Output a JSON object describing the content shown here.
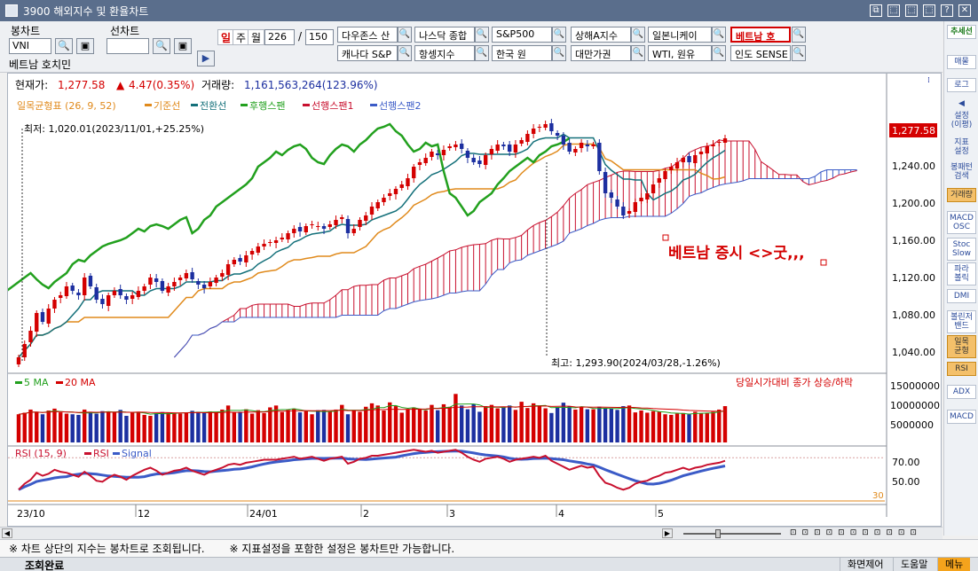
{
  "window": {
    "title": "3900 해외지수 및 환율차트",
    "buttons": [
      "⧉",
      "⬚",
      "⬚",
      "⬚",
      "?",
      "✕"
    ]
  },
  "toolbar": {
    "candle_label": "봉차트",
    "candle_symbol": "VNI",
    "candle_symbol_name": "베트남 호치민",
    "futures_label": "선차트",
    "futures_symbol": "",
    "periods": [
      "일",
      "주",
      "월"
    ],
    "active_period": "일",
    "count_value": "226",
    "count_sep": "/",
    "count_total": "150",
    "index_buttons_row1": [
      "다우존스 산",
      "나스닥 종합",
      "S&P500",
      "상해A지수",
      "일본니케이",
      "베트남 호"
    ],
    "index_buttons_row2": [
      "캐나다 S&P",
      "항셍지수",
      "한국 원",
      "대만가권",
      "WTI, 원유",
      "인도 SENSE"
    ],
    "search_glyph": "🔍",
    "save_glyph": "▣",
    "arrow_glyph": "▶"
  },
  "info": {
    "price_label": "현재가:",
    "price": "1,277.58",
    "change_arrow": "▲",
    "change": "4.47(0.35%)",
    "volume_label": "거래량:",
    "volume": "1,161,563,264(123.96%)"
  },
  "legend": {
    "ichimoku": "일목균형표 (26, 9, 52)",
    "base_line": "기준선",
    "conversion_line": "전환선",
    "lagging_span": "후행스팬",
    "leading_span1": "선행스팬1",
    "leading_span2": "선행스팬2"
  },
  "colors": {
    "up": "#d40000",
    "down": "#1c2fa0",
    "base": "#e08a1c",
    "conversion": "#14707a",
    "lagging": "#22a01e",
    "span1": "#c8102e",
    "span2": "#3b5bc7"
  },
  "annotations": {
    "low": "최저: 1,020.01(2023/11/01,+25.25%)",
    "high": "최고: 1,293.90(2024/03/28,-1.26%)",
    "note": "베트남 증시 <>굿,,,",
    "price_tag": "1,277.58",
    "vol_note": "당일시가대비 종가 상승/하락"
  },
  "price_axis": [
    "1,240.00",
    "1,200.00",
    "1,160.00",
    "1,120.00",
    "1,080.00",
    "1,040.00"
  ],
  "volume_legend": {
    "ma5": "5 MA",
    "ma20": "20 MA"
  },
  "volume_axis": [
    "15000000",
    "10000000",
    "5000000"
  ],
  "rsi": {
    "legend_main": "RSI (15, 9)",
    "legend_rsi": "RSI",
    "legend_signal": "Signal",
    "axis": [
      "70.00",
      "50.00"
    ],
    "low_line": "30"
  },
  "x_axis": [
    "23/10",
    "12",
    "24/01",
    "2",
    "3",
    "4",
    "5"
  ],
  "chart_data": {
    "type": "candlestick",
    "ylim": [
      1020,
      1300
    ],
    "volume_ylim": [
      0,
      17000000
    ],
    "rsi_ylim": [
      25,
      80
    ],
    "close": [
      1030,
      1045,
      1060,
      1080,
      1070,
      1085,
      1095,
      1100,
      1110,
      1105,
      1100,
      1120,
      1110,
      1095,
      1090,
      1100,
      1105,
      1100,
      1095,
      1100,
      1105,
      1110,
      1120,
      1115,
      1105,
      1110,
      1115,
      1120,
      1125,
      1118,
      1112,
      1108,
      1115,
      1120,
      1125,
      1135,
      1140,
      1138,
      1145,
      1150,
      1155,
      1158,
      1160,
      1162,
      1165,
      1170,
      1175,
      1172,
      1178,
      1180,
      1178,
      1175,
      1180,
      1185,
      1188,
      1170,
      1175,
      1185,
      1190,
      1200,
      1205,
      1210,
      1215,
      1220,
      1225,
      1232,
      1245,
      1250,
      1255,
      1262,
      1258,
      1264,
      1268,
      1270,
      1265,
      1255,
      1250,
      1248,
      1258,
      1265,
      1270,
      1268,
      1262,
      1270,
      1275,
      1282,
      1288,
      1290,
      1293,
      1285,
      1280,
      1270,
      1262,
      1265,
      1272,
      1268,
      1270,
      1240,
      1215,
      1210,
      1200,
      1190,
      1195,
      1205,
      1210,
      1215,
      1225,
      1232,
      1240,
      1245,
      1250,
      1255,
      1250,
      1258,
      1262,
      1268,
      1270,
      1273,
      1277
    ],
    "volume": [
      9000000,
      9500000,
      10500000,
      9800000,
      9000000,
      10200000,
      10800000,
      9600000,
      9200000,
      9000000,
      8800000,
      10500000,
      9800000,
      9200000,
      10000000,
      9700000,
      9800000,
      10400000,
      8500000,
      9600000,
      9800000,
      8800000,
      8500000,
      9300000,
      9700000,
      9500000,
      9400000,
      9200000,
      9600000,
      10100000,
      9800000,
      9400000,
      9900000,
      9500000,
      10500000,
      11800000,
      9500000,
      9800000,
      10600000,
      9200000,
      10300000,
      9400000,
      11200000,
      11800000,
      9700000,
      10400000,
      10800000,
      9600000,
      10000000,
      9000000,
      10300000,
      10400000,
      9800000,
      10500000,
      12000000,
      9000000,
      10200000,
      9800000,
      11400000,
      12500000,
      11800000,
      10200000,
      12800000,
      11600000,
      9500000,
      10500000,
      11200000,
      10800000,
      10200000,
      12000000,
      10300000,
      12200000,
      11400000,
      15500000,
      11800000,
      10600000,
      12200000,
      9800000,
      11600000,
      12000000,
      10900000,
      11200000,
      11800000,
      10400000,
      13000000,
      11000000,
      12500000,
      11800000,
      10900000,
      9400000,
      11300000,
      12700000,
      11500000,
      10500000,
      11200000,
      10600000,
      10600000,
      11400000,
      10900000,
      10800000,
      10400000,
      11600000,
      11800000,
      9600000,
      10200000,
      9500000,
      10000000,
      9800000,
      9000000,
      8800000,
      9200000,
      9400000,
      9000000,
      9800000,
      9200000,
      9500000,
      9800000,
      10500000,
      11600000
    ],
    "rsi": [
      38,
      44,
      48,
      55,
      52,
      54,
      58,
      56,
      55,
      53,
      51,
      56,
      52,
      47,
      46,
      50,
      53,
      51,
      48,
      52,
      55,
      58,
      60,
      57,
      53,
      55,
      57,
      58,
      60,
      57,
      55,
      53,
      56,
      58,
      60,
      63,
      64,
      63,
      65,
      66,
      67,
      68,
      68,
      68,
      69,
      70,
      71,
      69,
      70,
      71,
      69,
      67,
      69,
      70,
      71,
      64,
      66,
      69,
      70,
      72,
      72,
      73,
      74,
      75,
      76,
      77,
      78,
      77,
      76,
      77,
      75,
      76,
      77,
      78,
      75,
      71,
      68,
      66,
      69,
      70,
      71,
      69,
      66,
      68,
      69,
      70,
      71,
      70,
      72,
      67,
      64,
      61,
      58,
      60,
      62,
      60,
      61,
      52,
      45,
      43,
      40,
      38,
      40,
      44,
      46,
      47,
      50,
      52,
      55,
      56,
      58,
      60,
      58,
      60,
      61,
      63,
      64,
      65,
      67
    ]
  }
}
